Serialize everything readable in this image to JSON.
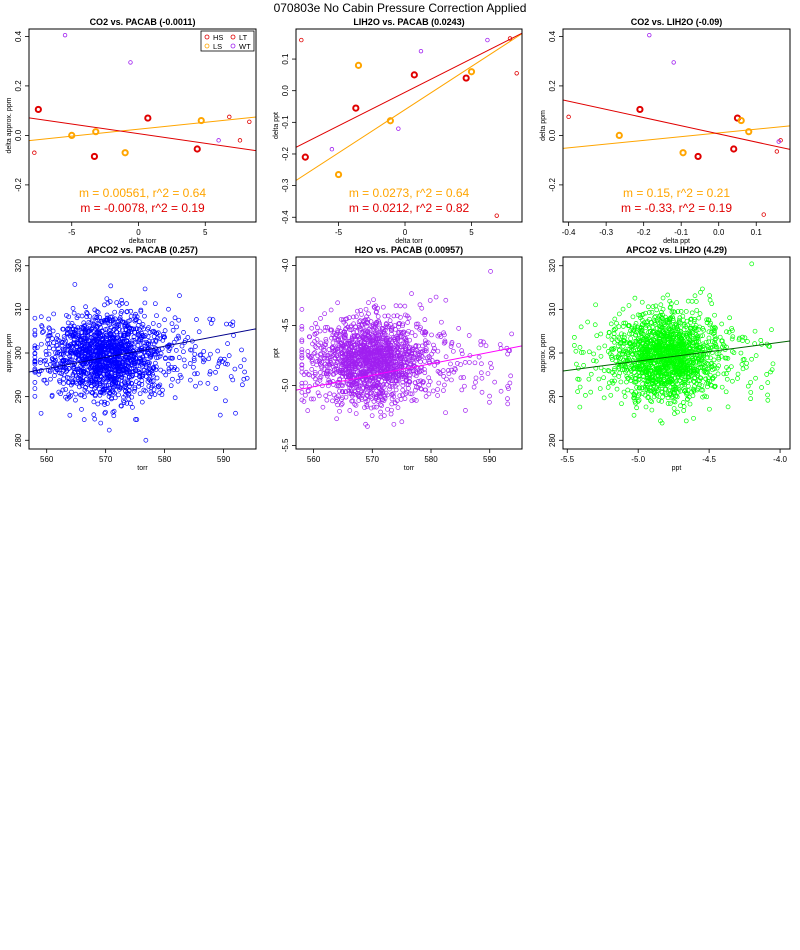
{
  "figure": {
    "title": "070803e   No Cabin Pressure Correction Applied"
  },
  "chart_data": [
    {
      "type": "scatter",
      "title": "CO2 vs. PACAB (-0.0011)",
      "xlabel": "delta torr",
      "ylabel": "delta approx. ppm",
      "xlim": [
        -8.2,
        8.8
      ],
      "ylim": [
        -0.35,
        0.43
      ],
      "xticks": [
        -5,
        0,
        5
      ],
      "yticks": [
        -0.2,
        0.0,
        0.2,
        0.4
      ],
      "ytick_labels": [
        "-0.2",
        "0.0",
        "0.2",
        "0.4"
      ],
      "legend": {
        "placement": "top-right",
        "entries": [
          {
            "label": "HS",
            "color": "#e00000"
          },
          {
            "label": "LT",
            "color": "#e00000"
          },
          {
            "label": "LS",
            "color": "#ffa500"
          },
          {
            "label": "WT",
            "color": "#a020f0"
          }
        ]
      },
      "series": [
        {
          "name": "HS",
          "color": "#e00000",
          "bold": true,
          "points": [
            [
              -7.5,
              0.105
            ],
            [
              -3.3,
              -0.085
            ],
            [
              0.7,
              0.07
            ],
            [
              4.4,
              -0.055
            ]
          ]
        },
        {
          "name": "LS",
          "color": "#ffa500",
          "bold": true,
          "points": [
            [
              -5.0,
              0.0
            ],
            [
              -3.2,
              0.015
            ],
            [
              -1.0,
              -0.07
            ],
            [
              4.7,
              0.06
            ]
          ]
        },
        {
          "name": "LT",
          "color": "#e00000",
          "bold": false,
          "points": [
            [
              -7.8,
              -0.07
            ],
            [
              6.8,
              0.075
            ],
            [
              7.6,
              -0.02
            ],
            [
              8.3,
              0.055
            ]
          ]
        },
        {
          "name": "WT",
          "color": "#a020f0",
          "bold": false,
          "points": [
            [
              -5.5,
              0.405
            ],
            [
              -0.6,
              0.295
            ],
            [
              6.0,
              -0.02
            ]
          ]
        }
      ],
      "fit_lines": [
        {
          "color": "#ffa500",
          "slope": 0.00561,
          "intercept": 0.025,
          "label": "m = 0.00561, r^2 = 0.64"
        },
        {
          "color": "#e00000",
          "slope": -0.0078,
          "intercept": 0.007,
          "label": "m = -0.0078, r^2 = 0.19"
        }
      ]
    },
    {
      "type": "scatter",
      "title": "LIH2O vs. PACAB (0.0243)",
      "xlabel": "delta torr",
      "ylabel": "delta ppt",
      "xlim": [
        -8.2,
        8.8
      ],
      "ylim": [
        -0.415,
        0.195
      ],
      "xticks": [
        -5,
        0,
        5
      ],
      "yticks": [
        -0.4,
        -0.3,
        -0.2,
        -0.1,
        0.0,
        0.1
      ],
      "ytick_labels": [
        "-0.4",
        "-0.3",
        "-0.2",
        "-0.1",
        "0.0",
        "0.1"
      ],
      "series": [
        {
          "name": "HS",
          "color": "#e00000",
          "bold": true,
          "points": [
            [
              -7.5,
              -0.21
            ],
            [
              -3.7,
              -0.055
            ],
            [
              0.7,
              0.05
            ],
            [
              4.6,
              0.04
            ]
          ]
        },
        {
          "name": "LS",
          "color": "#ffa500",
          "bold": true,
          "points": [
            [
              -5.0,
              -0.265
            ],
            [
              -3.5,
              0.08
            ],
            [
              -1.1,
              -0.095
            ],
            [
              5.0,
              0.06
            ]
          ]
        },
        {
          "name": "LT",
          "color": "#e00000",
          "bold": false,
          "points": [
            [
              -7.8,
              0.16
            ],
            [
              6.9,
              -0.395
            ],
            [
              7.9,
              0.165
            ],
            [
              8.4,
              0.055
            ]
          ]
        },
        {
          "name": "WT",
          "color": "#a020f0",
          "bold": false,
          "points": [
            [
              -5.5,
              -0.185
            ],
            [
              -0.5,
              -0.12
            ],
            [
              1.2,
              0.125
            ],
            [
              6.2,
              0.16
            ]
          ]
        }
      ],
      "fit_lines": [
        {
          "color": "#ffa500",
          "slope": 0.0273,
          "intercept": -0.06,
          "label": "m = 0.0273, r^2 = 0.64"
        },
        {
          "color": "#e00000",
          "slope": 0.0212,
          "intercept": -0.005,
          "label": "m = 0.0212, r^2 = 0.82"
        }
      ]
    },
    {
      "type": "scatter",
      "title": "CO2 vs. LIH2O (-0.09)",
      "xlabel": "delta ppt",
      "ylabel": "delta ppm",
      "xlim": [
        -0.415,
        0.19
      ],
      "ylim": [
        -0.35,
        0.43
      ],
      "xticks": [
        -0.4,
        -0.3,
        -0.2,
        -0.1,
        0.0,
        0.1
      ],
      "xtick_labels": [
        "-0.4",
        "-0.3",
        "-0.2",
        "-0.1",
        "0.0",
        "0.1"
      ],
      "yticks": [
        -0.2,
        0.0,
        0.2,
        0.4
      ],
      "ytick_labels": [
        "-0.2",
        "0.0",
        "0.2",
        "0.4"
      ],
      "series": [
        {
          "name": "HS",
          "color": "#e00000",
          "bold": true,
          "points": [
            [
              -0.21,
              0.105
            ],
            [
              -0.055,
              -0.085
            ],
            [
              0.05,
              0.07
            ],
            [
              0.04,
              -0.055
            ]
          ]
        },
        {
          "name": "LS",
          "color": "#ffa500",
          "bold": true,
          "points": [
            [
              -0.265,
              0.0
            ],
            [
              0.08,
              0.015
            ],
            [
              -0.095,
              -0.07
            ],
            [
              0.06,
              0.06
            ]
          ]
        },
        {
          "name": "LT",
          "color": "#e00000",
          "bold": false,
          "points": [
            [
              -0.4,
              0.075
            ],
            [
              0.165,
              -0.02
            ],
            [
              0.155,
              -0.065
            ],
            [
              0.12,
              -0.32
            ]
          ]
        },
        {
          "name": "WT",
          "color": "#a020f0",
          "bold": false,
          "points": [
            [
              -0.185,
              0.405
            ],
            [
              -0.12,
              0.295
            ],
            [
              0.16,
              -0.025
            ]
          ]
        }
      ],
      "fit_lines": [
        {
          "color": "#ffa500",
          "slope": 0.15,
          "intercept": 0.01,
          "label": "m = 0.15, r^2 = 0.21"
        },
        {
          "color": "#e00000",
          "slope": -0.33,
          "intercept": 0.006,
          "label": "m = -0.33, r^2 = 0.19"
        }
      ]
    },
    {
      "type": "scatter",
      "title": "APCO2 vs. PACAB (0.257)",
      "xlabel": "torr",
      "ylabel": "approx. ppm",
      "xlim": [
        557,
        595.5
      ],
      "ylim": [
        278,
        322
      ],
      "xticks": [
        560,
        570,
        580,
        590
      ],
      "yticks": [
        280,
        290,
        300,
        310,
        320
      ],
      "point_color": "#0000ff",
      "cloud": {
        "approx_points": 1600,
        "x_center": 570,
        "x_sd": 4.5,
        "y_center": 299,
        "y_sd": 5,
        "x_range": [
          558,
          594
        ],
        "y_range": [
          280,
          321
        ]
      },
      "fit_lines": [
        {
          "color": "#00008b",
          "slope": 0.257,
          "intercept": 152.5
        }
      ]
    },
    {
      "type": "scatter",
      "title": "H2O vs. PACAB (0.00957)",
      "xlabel": "torr",
      "ylabel": "ppt",
      "xlim": [
        557,
        595.5
      ],
      "ylim": [
        -5.53,
        -3.93
      ],
      "xticks": [
        560,
        570,
        580,
        590
      ],
      "yticks": [
        -5.5,
        -5.0,
        -4.5,
        -4.0
      ],
      "ytick_labels": [
        "-5.5",
        "-5.0",
        "-4.5",
        "-4.0"
      ],
      "point_color": "#a020f0",
      "cloud": {
        "approx_points": 1600,
        "x_center": 570,
        "x_sd": 4.5,
        "y_center": -4.8,
        "y_sd": 0.18,
        "x_range": [
          558,
          594
        ],
        "y_range": [
          -5.45,
          -4.05
        ]
      },
      "fit_lines": [
        {
          "color": "#ff00ff",
          "slope": 0.00957,
          "intercept": -10.37
        }
      ]
    },
    {
      "type": "scatter",
      "title": "APCO2 vs. LIH2O (4.29)",
      "xlabel": "ppt",
      "ylabel": "approx. ppm",
      "xlim": [
        -5.53,
        -3.93
      ],
      "ylim": [
        278,
        322
      ],
      "xticks": [
        -5.5,
        -5.0,
        -4.5,
        -4.0
      ],
      "xtick_labels": [
        "-5.5",
        "-5.0",
        "-4.5",
        "-4.0"
      ],
      "yticks": [
        280,
        290,
        300,
        310,
        320
      ],
      "point_color": "#00ff00",
      "cloud": {
        "approx_points": 1600,
        "x_center": -4.8,
        "x_sd": 0.17,
        "y_center": 299,
        "y_sd": 5,
        "x_range": [
          -5.45,
          -4.05
        ],
        "y_range": [
          280,
          321
        ]
      },
      "fit_lines": [
        {
          "color": "#006400",
          "slope": 4.29,
          "intercept": 319.6
        }
      ]
    }
  ]
}
